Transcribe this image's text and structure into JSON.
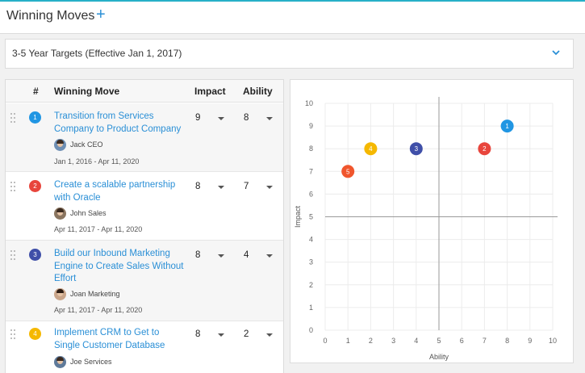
{
  "header": {
    "title": "Winning Moves",
    "add_icon": "+"
  },
  "targets": {
    "label": "3-5 Year Targets (Effective Jan 1, 2017)"
  },
  "table": {
    "columns": {
      "num": "#",
      "move": "Winning Move",
      "impact": "Impact",
      "ability": "Ability"
    },
    "rows": [
      {
        "num": "1",
        "color": "#2196e3",
        "lines": [
          "Transition from Services",
          "Company to Product Company"
        ],
        "owner": "Jack CEO",
        "dates": "Jan 1, 2016 - Apr 11, 2020",
        "impact": "9",
        "ability": "8"
      },
      {
        "num": "2",
        "color": "#e8453c",
        "lines": [
          "Create a scalable partnership",
          "with Oracle"
        ],
        "owner": "John Sales",
        "dates": "Apr 11, 2017 - Apr 11, 2020",
        "impact": "8",
        "ability": "7"
      },
      {
        "num": "3",
        "color": "#3f4fa8",
        "lines": [
          "Build our Inbound Marketing",
          "Engine to Create Sales Without",
          "Effort"
        ],
        "owner": "Joan Marketing",
        "dates": "Apr 11, 2017 - Apr 11, 2020",
        "impact": "8",
        "ability": "4"
      },
      {
        "num": "4",
        "color": "#f5b800",
        "lines": [
          "Implement CRM to Get to",
          "Single Customer Database"
        ],
        "owner": "Joe Services",
        "dates": "",
        "impact": "8",
        "ability": "2"
      }
    ]
  },
  "chart_data": {
    "type": "scatter",
    "xlabel": "Ability",
    "ylabel": "Impact",
    "xlim": [
      0,
      10
    ],
    "ylim": [
      0,
      10
    ],
    "xticks": [
      "0",
      "1",
      "2",
      "3",
      "4",
      "5",
      "6",
      "7",
      "8",
      "9",
      "10"
    ],
    "yticks": [
      "0",
      "1",
      "2",
      "3",
      "4",
      "5",
      "6",
      "7",
      "8",
      "9",
      "10"
    ],
    "grid": true,
    "points": [
      {
        "label": "1",
        "x": 8,
        "y": 9,
        "color": "#2196e3"
      },
      {
        "label": "2",
        "x": 7,
        "y": 8,
        "color": "#e8453c"
      },
      {
        "label": "3",
        "x": 4,
        "y": 8,
        "color": "#3f4fa8"
      },
      {
        "label": "4",
        "x": 2,
        "y": 8,
        "color": "#f5b800"
      },
      {
        "label": "5",
        "x": 1,
        "y": 7,
        "color": "#f0562d"
      }
    ]
  }
}
